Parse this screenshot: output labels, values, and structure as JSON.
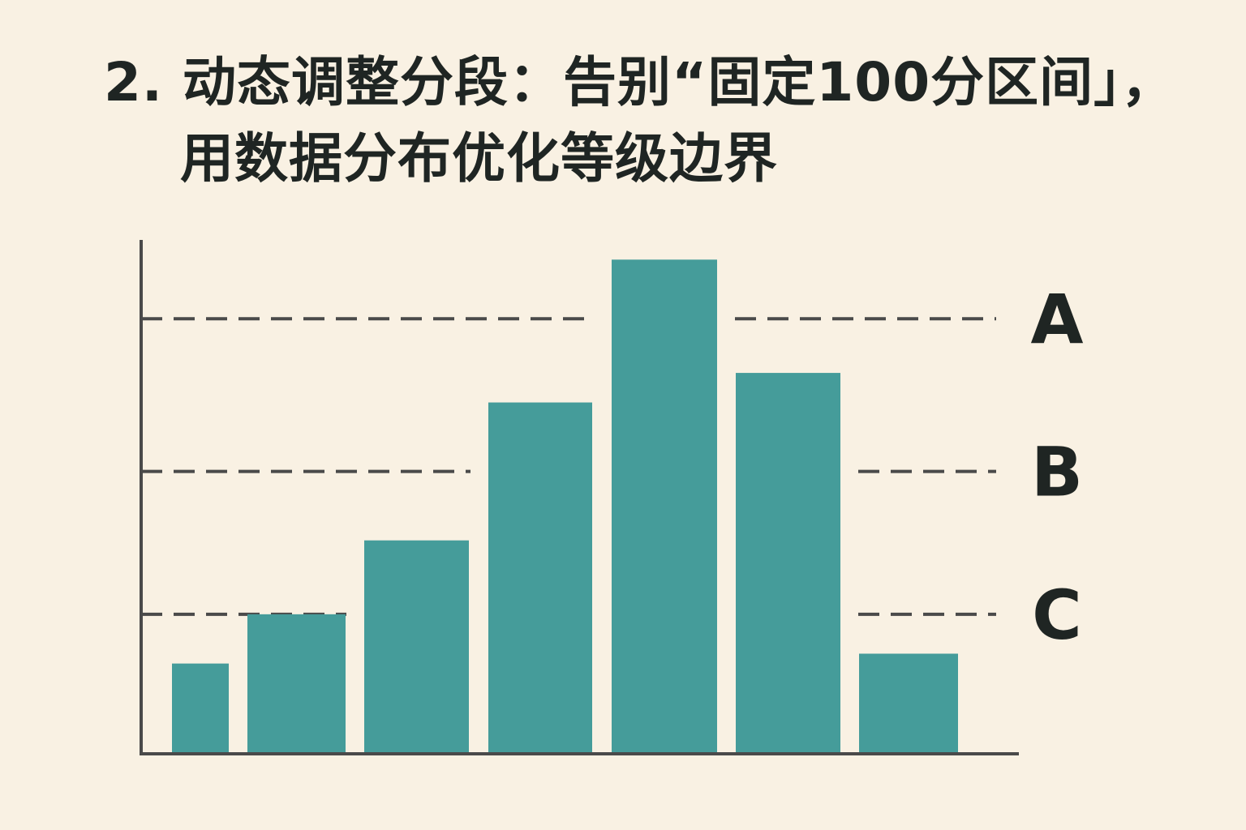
{
  "title_lines": [
    "2. 动态调整分段：告别“固定100分区间」，",
    "用数据分布优化等级边界"
  ],
  "colors": {
    "background": "#f9f1e3",
    "bar": "#459c9a",
    "axis": "#4a4a4a",
    "text": "#1f2523"
  },
  "chart_data": {
    "type": "bar",
    "title": "2. 动态调整分段：告别“固定100分区间」，用数据分布优化等级边界",
    "xlabel": "",
    "ylabel": "",
    "categories": [
      "",
      "",
      "",
      "",
      "",
      "",
      ""
    ],
    "values": [
      18,
      28,
      43,
      71,
      100,
      77,
      20
    ],
    "ylim": [
      0,
      104
    ],
    "grid": false,
    "thresholds": [
      {
        "label": "A",
        "value": 88
      },
      {
        "label": "B",
        "value": 57
      },
      {
        "label": "C",
        "value": 28
      }
    ]
  }
}
